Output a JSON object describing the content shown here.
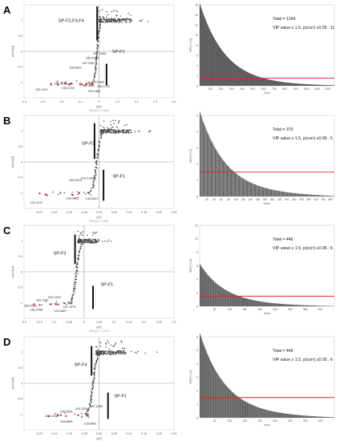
{
  "figure": {
    "panels": [
      {
        "letter": "A",
        "splot": {
          "xlabel": "p[1]",
          "ylabel": "p(corr)[1]",
          "footnote": "R2X[1] = 0.469",
          "xlim": [
            -0.4,
            0.4
          ],
          "ylim": [
            -1.5,
            1.5
          ],
          "xticks": [
            -0.4,
            -0.3,
            -0.2,
            -0.1,
            0,
            0.1,
            0.2,
            0.3,
            0.4
          ],
          "xtick_labels": [
            "-0.4",
            "-0.3",
            "-0.2",
            "-0.1",
            "0",
            "0.1",
            "0.2",
            "0.3",
            "0.4"
          ],
          "yticks": [
            -1,
            -0.5,
            0,
            0.5,
            1
          ],
          "ytick_labels": [
            "-1",
            "-0.5",
            "0",
            "0.5",
            "1"
          ],
          "group_labels": [
            {
              "text": "SP-F2,F3,F4",
              "x": -0.08,
              "y": 0.95
            },
            {
              "text": "SP-F1",
              "x": 0.07,
              "y": -0.05
            }
          ],
          "upper_bar": {
            "x": -0.01,
            "y1": 0.35,
            "y2": 1.45
          },
          "lower_bar": {
            "x": 0.04,
            "y1": -0.4,
            "y2": -1.1
          },
          "cloud_top": {
            "x0": 0.0,
            "x1": 0.17,
            "xmax": 0.28
          },
          "lower_arm": {
            "x0": -0.33,
            "x1": -0.02
          },
          "mz_labels": [
            {
              "text": "261.1269",
              "x": -0.03,
              "y": -0.1
            },
            {
              "text": "260.1687",
              "x": -0.07,
              "y": -0.25
            },
            {
              "text": "247.1531",
              "x": -0.09,
              "y": -0.41
            },
            {
              "text": "118.0813",
              "x": -0.16,
              "y": -0.55
            },
            {
              "text": "150.0579",
              "x": -0.24,
              "y": -1.07
            },
            {
              "text": "133.0724",
              "x": -0.2,
              "y": -1.22
            },
            {
              "text": "132.1017",
              "x": -0.34,
              "y": -1.27
            },
            {
              "text": "149.0982",
              "x": -0.04,
              "y": -1.02
            },
            {
              "text": "180.0981",
              "x": -0.09,
              "y": -1.14
            },
            {
              "text": "255.1178",
              "x": -0.01,
              "y": -1.16
            },
            {
              "text": "233.1380",
              "x": -0.06,
              "y": -1.32
            }
          ]
        },
        "vip": {
          "ylabel": "VIP[1+1+0]",
          "xlabel": "Num",
          "n": 1264,
          "vip_max": 16,
          "threshold": 1.5,
          "ylim": [
            0,
            16
          ],
          "yticks": [
            0,
            2,
            4,
            6,
            8,
            10,
            12,
            14,
            16
          ],
          "xticks": [
            100,
            200,
            300,
            400,
            500,
            600,
            700,
            800,
            900,
            1000,
            1100,
            1200
          ],
          "total_text": "Total = 1264",
          "vip_text": "VIP value ≥ 1.5, p(corr) ≥0.95 : 11"
        }
      },
      {
        "letter": "B",
        "splot": {
          "xlabel": "p[1]",
          "ylabel": "p(corr)[1]",
          "footnote": "R2X[1] = 0.962",
          "xlim": [
            -0.25,
            0.25
          ],
          "ylim": [
            -1.5,
            1.5
          ],
          "xticks": [
            -0.25,
            -0.2,
            -0.15,
            -0.1,
            -0.05,
            0,
            0.05,
            0.1,
            0.15,
            0.2,
            0.25
          ],
          "xtick_labels": [
            "",
            "-0.20",
            "-0.15",
            "-0.10",
            "-0.05",
            "0.00",
            "0.05",
            "0.10",
            "0.15",
            "0.20",
            "0.25"
          ],
          "yticks": [
            -1,
            -0.5,
            0,
            0.5,
            1
          ],
          "ytick_labels": [
            "-1",
            "-0.5",
            "0",
            "0.5",
            "1"
          ],
          "group_labels": [
            {
              "text": "SP-F2",
              "x": -0.015,
              "y": 0.55
            },
            {
              "text": "SP-F1",
              "x": 0.045,
              "y": -0.5
            }
          ],
          "upper_bar": {
            "x": -0.015,
            "y1": 0.1,
            "y2": 1.25
          },
          "lower_bar": {
            "x": 0.015,
            "y1": -0.25,
            "y2": -1.25
          },
          "cloud_top": {
            "x0": 0.005,
            "x1": 0.11,
            "xmax": 0.2
          },
          "lower_arm": {
            "x0": -0.22,
            "x1": -0.02
          },
          "mz_labels": [
            {
              "text": "150.0572",
              "x": -0.1,
              "y": -0.62
            },
            {
              "text": "219.1339",
              "x": -0.06,
              "y": -0.55
            },
            {
              "text": "118.0865",
              "x": -0.11,
              "y": -1.2
            },
            {
              "text": "133.0637",
              "x": -0.045,
              "y": -1.22
            },
            {
              "text": "132.1017",
              "x": -0.23,
              "y": -1.35
            }
          ]
        },
        "vip": {
          "ylabel": "VIP[1+1+0]",
          "xlabel": "Num",
          "n": 370,
          "vip_max": 5,
          "threshold": 1.5,
          "ylim": [
            0,
            5
          ],
          "yticks": [
            0,
            1,
            2,
            3,
            4,
            5
          ],
          "xticks": [
            20,
            40,
            60,
            80,
            100,
            120,
            140,
            160,
            180,
            200,
            220,
            240,
            260,
            280,
            300,
            320,
            340,
            360
          ],
          "total_text": "Total = 370",
          "vip_text": "VIP value ≥ 1.5, p(corr) ≥0.95 : 5"
        }
      },
      {
        "letter": "C",
        "splot": {
          "xlabel": "p[1]",
          "ylabel": "p(corr)[1]",
          "footnote": "R2X[1] = 0.876",
          "xlim": [
            -0.2,
            0.3
          ],
          "ylim": [
            -1.5,
            1.5
          ],
          "xticks": [
            -0.2,
            -0.15,
            -0.1,
            -0.05,
            0,
            0.05,
            0.1,
            0.15,
            0.2,
            0.25,
            0.3
          ],
          "xtick_labels": [
            "-0.2",
            "-0.15",
            "-0.1",
            "-0.05",
            "0",
            "0.05",
            "0.1",
            "0.15",
            "0.2",
            "0.25",
            "0.3"
          ],
          "yticks": [
            -1,
            -0.5,
            0,
            0.5,
            1
          ],
          "ytick_labels": [
            "-1",
            "-0.5",
            "0",
            "0.5",
            "1"
          ],
          "group_labels": [
            {
              "text": "SP-F3",
              "x": -0.06,
              "y": 0.55
            },
            {
              "text": "SP-F1",
              "x": 0.055,
              "y": -0.45
            }
          ],
          "upper_bar": {
            "x": -0.03,
            "y1": 0.25,
            "y2": 1.2
          },
          "lower_bar": {
            "x": 0.03,
            "y1": -0.45,
            "y2": -1.2
          },
          "cloud_top": {
            "x0": -0.02,
            "x1": 0.05,
            "xmax": 0.09
          },
          "lower_arm": {
            "x0": -0.17,
            "x1": -0.03
          },
          "mz_labels": [
            {
              "text": "219.1334",
              "x": -0.12,
              "y": -0.85
            },
            {
              "text": "104.1071",
              "x": -0.16,
              "y": -0.95
            },
            {
              "text": "150.0582",
              "x": -0.2,
              "y": -1.13
            },
            {
              "text": "118.0758",
              "x": -0.18,
              "y": -1.25
            },
            {
              "text": "187.1075",
              "x": -0.07,
              "y": -1.17
            },
            {
              "text": "133.0627",
              "x": -0.1,
              "y": -1.29
            }
          ]
        },
        "vip": {
          "ylabel": "VIP[1+1+0]",
          "xlabel": "Num",
          "n": 446,
          "vip_max": 6,
          "threshold": 1.5,
          "ylim": [
            0,
            12
          ],
          "yticks": [
            0,
            2,
            4,
            6,
            8,
            10,
            12
          ],
          "xticks": [
            50,
            100,
            150,
            200,
            250,
            300,
            350,
            400
          ],
          "total_text": "Total = 446",
          "vip_text": "VIP value ≥ 1.5, p(corr) ≥0.95 : 6"
        }
      },
      {
        "letter": "D",
        "splot": {
          "xlabel": "p[1]",
          "ylabel": "p(corr)[1]",
          "footnote": "R2X[1] = 0.876",
          "xlim": [
            -0.25,
            0.25
          ],
          "ylim": [
            -1.5,
            1.5
          ],
          "xticks": [
            -0.25,
            -0.2,
            -0.15,
            -0.1,
            -0.05,
            0,
            0.05,
            0.1,
            0.15,
            0.2,
            0.25
          ],
          "xtick_labels": [
            "",
            "-0.20",
            "-0.15",
            "-0.10",
            "-0.05",
            "0.00",
            "0.05",
            "0.10",
            "0.15",
            "0.20",
            "0.25"
          ],
          "yticks": [
            -1,
            -0.5,
            0,
            0.5,
            1
          ],
          "ytick_labels": [
            "-1",
            "-0.5",
            "0",
            "0.5",
            "1"
          ],
          "group_labels": [
            {
              "text": "SP-F4",
              "x": -0.04,
              "y": 0.55
            },
            {
              "text": "SP-F1",
              "x": 0.05,
              "y": -0.45
            }
          ],
          "upper_bar": {
            "x": -0.025,
            "y1": 0.25,
            "y2": 1.2
          },
          "lower_bar": {
            "x": 0.03,
            "y1": -0.3,
            "y2": -1.15
          },
          "cloud_top": {
            "x0": -0.01,
            "x1": 0.09,
            "xmax": 0.22
          },
          "lower_arm": {
            "x0": -0.17,
            "x1": -0.03
          },
          "mz_labels": [
            {
              "text": "187.1260",
              "x": -0.03,
              "y": -0.77
            },
            {
              "text": "219.1311",
              "x": -0.08,
              "y": -0.85
            },
            {
              "text": "150.0561",
              "x": -0.13,
              "y": -0.95
            },
            {
              "text": "104.1072",
              "x": -0.18,
              "y": -1.09
            },
            {
              "text": "118.0865",
              "x": -0.13,
              "y": -1.27
            },
            {
              "text": "133.0661",
              "x": -0.05,
              "y": -1.33
            }
          ]
        },
        "vip": {
          "ylabel": "VIP[1+1+0]",
          "xlabel": "Num",
          "n": 446,
          "vip_max": 6,
          "threshold": 1.5,
          "ylim": [
            0,
            6
          ],
          "yticks": [
            0,
            1,
            2,
            3,
            4,
            5,
            6
          ],
          "xticks": [
            50,
            100,
            150,
            200,
            250,
            300,
            350,
            400
          ],
          "total_text": "Total = 446",
          "vip_text": "VIP value ≥ 1.5, p(corr) ≥0.95 : 6"
        }
      }
    ],
    "colors": {
      "points": "#4a4a4a",
      "axis": "#9a9a9a",
      "threshold_line": "#e0261c",
      "highlight": "#c42020",
      "group_bar": "#111111",
      "vip_bar": "#5c5c5c"
    }
  }
}
